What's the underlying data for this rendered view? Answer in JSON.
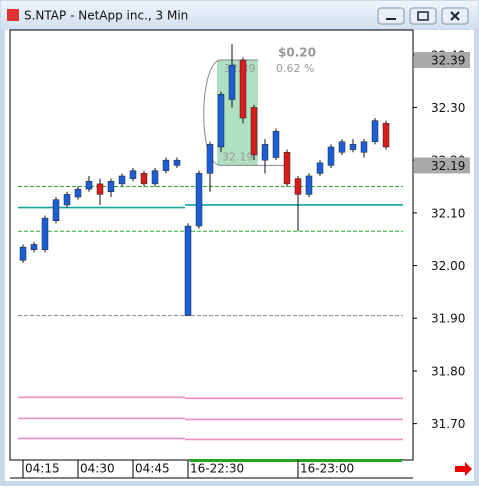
{
  "chart_data": {
    "type": "candlestick",
    "title": "S.NTAP - NetApp inc., 3 Min",
    "open": [
      32.01,
      32.03,
      32.03,
      32.085,
      32.115,
      32.13,
      32.145,
      32.155,
      32.14,
      32.155,
      32.165,
      32.175,
      32.155,
      32.18,
      32.19,
      31.905,
      32.075,
      32.175,
      32.225,
      32.315,
      32.39,
      32.3,
      32.2,
      32.205,
      32.215,
      32.165,
      32.135,
      32.175,
      32.19,
      32.215,
      32.22,
      32.215,
      32.235,
      32.27
    ],
    "high": [
      32.04,
      32.045,
      32.095,
      32.13,
      32.14,
      32.15,
      32.17,
      32.165,
      32.165,
      32.175,
      32.185,
      32.18,
      32.185,
      32.205,
      32.205,
      32.08,
      32.18,
      32.235,
      32.33,
      32.42,
      32.395,
      32.305,
      32.24,
      32.26,
      32.22,
      32.17,
      32.175,
      32.2,
      32.23,
      32.24,
      32.24,
      32.24,
      32.28,
      32.275
    ],
    "low": [
      32.005,
      32.025,
      32.025,
      32.08,
      32.11,
      32.125,
      32.14,
      32.115,
      32.13,
      32.15,
      32.16,
      32.15,
      32.15,
      32.175,
      32.185,
      31.905,
      32.07,
      32.14,
      32.215,
      32.3,
      32.27,
      32.2,
      32.175,
      32.2,
      32.15,
      32.065,
      32.13,
      32.17,
      32.185,
      32.21,
      32.215,
      32.205,
      32.23,
      32.22
    ],
    "close": [
      32.035,
      32.04,
      32.09,
      32.125,
      32.135,
      32.145,
      32.16,
      32.135,
      32.16,
      32.17,
      32.18,
      32.155,
      32.18,
      32.2,
      32.2,
      32.075,
      32.175,
      32.23,
      32.325,
      32.38,
      32.28,
      32.21,
      32.23,
      32.255,
      32.155,
      32.135,
      32.17,
      32.195,
      32.225,
      32.235,
      32.23,
      32.235,
      32.275,
      32.225
    ],
    "up_color": "#1c5ed6",
    "down_color": "#d81c1c",
    "xticks": [
      {
        "value": 0,
        "label": "04:15"
      },
      {
        "value": 5,
        "label": "04:30"
      },
      {
        "value": 10,
        "label": "04:45"
      },
      {
        "value": 15,
        "label": "16-22:30"
      },
      {
        "value": 25,
        "label": "16-23:00"
      }
    ],
    "ylim": [
      31.631,
      32.447
    ],
    "yticks": [
      {
        "value": 32.4,
        "label": "32.40"
      },
      {
        "value": 32.3,
        "label": "32.30"
      },
      {
        "value": 32.2,
        "label": "32.20"
      },
      {
        "value": 32.1,
        "label": "32.10"
      },
      {
        "value": 32.0,
        "label": "32.00"
      },
      {
        "value": 31.9,
        "label": "31.90"
      },
      {
        "value": 31.8,
        "label": "31.80"
      },
      {
        "value": 31.7,
        "label": "31.70"
      }
    ],
    "levels": [
      {
        "values": [
          32.15,
          32.15
        ],
        "color": "#2eaa2e",
        "dashed": true
      },
      {
        "values": [
          32.065,
          32.065
        ],
        "color": "#2eaa2e",
        "dashed": true
      },
      {
        "values": [
          32.11,
          32.115
        ],
        "color": "#12a5a0",
        "dashed": false
      },
      {
        "values": [
          31.905,
          31.905
        ],
        "color": "#888888",
        "dashed": true
      },
      {
        "values": [
          31.75,
          31.748
        ],
        "color": "#f08cc0",
        "dashed": false
      },
      {
        "values": [
          31.71,
          31.708
        ],
        "color": "#f08cc0",
        "dashed": false
      },
      {
        "values": [
          31.672,
          31.67
        ],
        "color": "#f08cc0",
        "dashed": false
      }
    ],
    "price_tags": [
      {
        "value": 32.39,
        "label": "32.39"
      },
      {
        "value": 32.19,
        "label": "32.19"
      }
    ],
    "measure": {
      "change": "$0.20",
      "percent": "0.62 %",
      "high": "32.39",
      "low": "32.19"
    }
  }
}
